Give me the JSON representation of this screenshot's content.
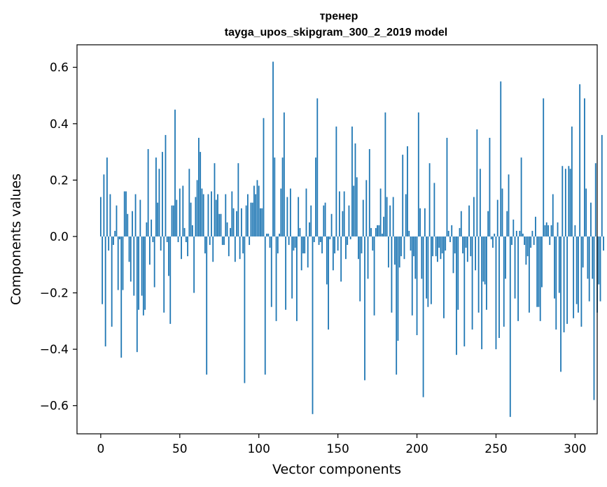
{
  "chart_data": {
    "type": "bar",
    "title": "тренер",
    "subtitle": "tayga_upos_skipgram_300_2_2019 model",
    "xlabel": "Vector components",
    "ylabel": "Components values",
    "xlim": [
      -15,
      314
    ],
    "ylim": [
      -0.7,
      0.68
    ],
    "x_ticks": [
      0,
      50,
      100,
      150,
      200,
      250,
      300
    ],
    "y_ticks": [
      -0.6,
      -0.4,
      -0.2,
      0.0,
      0.2,
      0.4,
      0.6
    ],
    "y_tick_labels": [
      "−0.6",
      "−0.4",
      "−0.2",
      "0.0",
      "0.2",
      "0.4",
      "0.6"
    ],
    "x_tick_labels": [
      "0",
      "50",
      "100",
      "150",
      "200",
      "250",
      "300"
    ],
    "grid": false,
    "legend": "none",
    "bar_color": "#1f77b4",
    "values": [
      0.14,
      -0.24,
      0.22,
      -0.39,
      0.28,
      -0.05,
      0.15,
      -0.32,
      -0.03,
      0.02,
      0.11,
      -0.19,
      -0.01,
      -0.43,
      -0.19,
      0.16,
      0.16,
      0.08,
      -0.09,
      -0.16,
      0.09,
      -0.21,
      0.15,
      -0.41,
      -0.26,
      0.13,
      -0.21,
      -0.28,
      -0.26,
      0.05,
      0.31,
      -0.1,
      0.06,
      -0.02,
      -0.18,
      0.28,
      0.12,
      0.24,
      -0.05,
      0.3,
      -0.27,
      0.36,
      -0.02,
      -0.14,
      -0.31,
      0.11,
      0.11,
      0.45,
      0.13,
      -0.02,
      0.17,
      -0.08,
      0.18,
      0.03,
      -0.02,
      -0.07,
      0.24,
      0.12,
      0.04,
      -0.2,
      0.14,
      0.2,
      0.35,
      0.3,
      0.17,
      0.15,
      -0.06,
      -0.49,
      0.15,
      -0.03,
      0.16,
      -0.09,
      0.26,
      0.13,
      0.15,
      0.08,
      0.08,
      -0.03,
      -0.03,
      0.15,
      0.05,
      -0.07,
      0.03,
      0.16,
      0.1,
      -0.09,
      0.09,
      0.26,
      -0.08,
      0.1,
      -0.06,
      -0.52,
      0.11,
      0.15,
      -0.03,
      0.12,
      0.12,
      0.18,
      0.15,
      0.2,
      0.18,
      0.1,
      0.1,
      0.42,
      -0.49,
      0.01,
      0.01,
      -0.04,
      -0.25,
      0.62,
      0.28,
      -0.3,
      -0.06,
      0.01,
      0.17,
      0.28,
      0.44,
      -0.26,
      0.14,
      -0.03,
      0.17,
      -0.22,
      -0.05,
      -0.04,
      -0.3,
      0.14,
      0.03,
      -0.12,
      -0.06,
      -0.06,
      0.17,
      -0.11,
      0.05,
      0.11,
      -0.63,
      -0.02,
      0.28,
      0.49,
      -0.03,
      -0.02,
      -0.06,
      0.11,
      0.12,
      -0.17,
      -0.33,
      -0.01,
      0.08,
      -0.12,
      -0.06,
      0.39,
      -0.05,
      0.16,
      -0.16,
      0.09,
      0.16,
      -0.08,
      -0.03,
      0.11,
      -0.01,
      0.39,
      0.18,
      0.33,
      0.21,
      -0.08,
      -0.23,
      -0.06,
      0.13,
      -0.51,
      0.2,
      -0.15,
      0.31,
      0.03,
      -0.05,
      -0.28,
      0.03,
      0.04,
      0.04,
      0.17,
      0.01,
      0.07,
      0.44,
      0.14,
      -0.11,
      0.11,
      -0.27,
      0.14,
      -0.1,
      -0.49,
      -0.37,
      -0.11,
      -0.07,
      0.29,
      -0.08,
      0.15,
      0.32,
      0.02,
      -0.05,
      -0.28,
      -0.07,
      -0.15,
      -0.35,
      0.44,
      0.1,
      -0.15,
      -0.57,
      0.1,
      -0.22,
      -0.25,
      0.26,
      -0.24,
      -0.07,
      0.19,
      -0.07,
      -0.09,
      -0.04,
      -0.08,
      -0.06,
      -0.29,
      -0.05,
      0.35,
      0.02,
      -0.02,
      0.04,
      -0.13,
      -0.06,
      -0.42,
      -0.26,
      0.03,
      0.09,
      -0.06,
      -0.39,
      -0.04,
      -0.09,
      0.11,
      -0.07,
      -0.33,
      0.14,
      -0.12,
      0.38,
      -0.27,
      0.24,
      -0.4,
      -0.16,
      -0.17,
      -0.26,
      0.09,
      0.35,
      -0.01,
      -0.04,
      0.01,
      -0.4,
      0.13,
      -0.36,
      0.55,
      0.17,
      -0.32,
      -0.15,
      0.09,
      0.22,
      -0.64,
      -0.03,
      0.06,
      -0.22,
      0.02,
      -0.3,
      0.02,
      0.28,
      0.01,
      -0.03,
      -0.1,
      -0.07,
      -0.27,
      -0.04,
      0.02,
      -0.03,
      0.07,
      -0.25,
      -0.25,
      -0.3,
      -0.18,
      0.49,
      0.04,
      0.05,
      0.04,
      -0.03,
      0.04,
      0.15,
      -0.22,
      -0.33,
      0.05,
      -0.2,
      -0.48,
      0.25,
      -0.34,
      0.24,
      -0.31,
      0.25,
      0.24,
      0.39,
      -0.29,
      0.04,
      -0.24,
      -0.27,
      0.54,
      -0.32,
      -0.11,
      0.49,
      0.17,
      -0.15,
      -0.23,
      0.12,
      -0.15,
      -0.58,
      0.26,
      -0.27,
      -0.17,
      -0.23,
      0.36,
      -0.05
    ]
  }
}
